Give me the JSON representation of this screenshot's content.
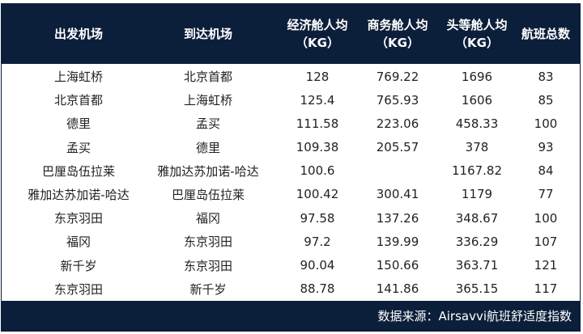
{
  "header": {
    "columns": [
      "出发机场",
      "到达机场",
      "经济舱人均\n（KG）",
      "商务舱人均\n（KG）",
      "头等舱人均\n（KG）",
      "航班总数"
    ]
  },
  "rows": [
    [
      "上海虹桥",
      "北京首都",
      "128",
      "769.22",
      "1696",
      "83"
    ],
    [
      "北京首都",
      "上海虹桥",
      "125.4",
      "765.93",
      "1606",
      "85"
    ],
    [
      "德里",
      "孟买",
      "111.58",
      "223.06",
      "458.33",
      "100"
    ],
    [
      "孟买",
      "德里",
      "109.38",
      "205.57",
      "378",
      "93"
    ],
    [
      "巴厘岛伍拉莱",
      "雅加达苏加诺-哈达",
      "100.6",
      "",
      "1167.82",
      "84"
    ],
    [
      "雅加达苏加诺-哈达",
      "巴厘岛伍拉莱",
      "100.42",
      "300.41",
      "1179",
      "77"
    ],
    [
      "东京羽田",
      "福冈",
      "97.58",
      "137.26",
      "348.67",
      "100"
    ],
    [
      "福冈",
      "东京羽田",
      "97.2",
      "139.99",
      "336.29",
      "107"
    ],
    [
      "新千岁",
      "东京羽田",
      "90.04",
      "150.66",
      "363.71",
      "121"
    ],
    [
      "东京羽田",
      "新千岁",
      "88.78",
      "141.86",
      "365.15",
      "117"
    ]
  ],
  "footer": {
    "source": "数据来源：Airsavvi航班舒适度指数"
  },
  "colors": {
    "header_bg": "#0c1f3a",
    "text": "#222222"
  }
}
